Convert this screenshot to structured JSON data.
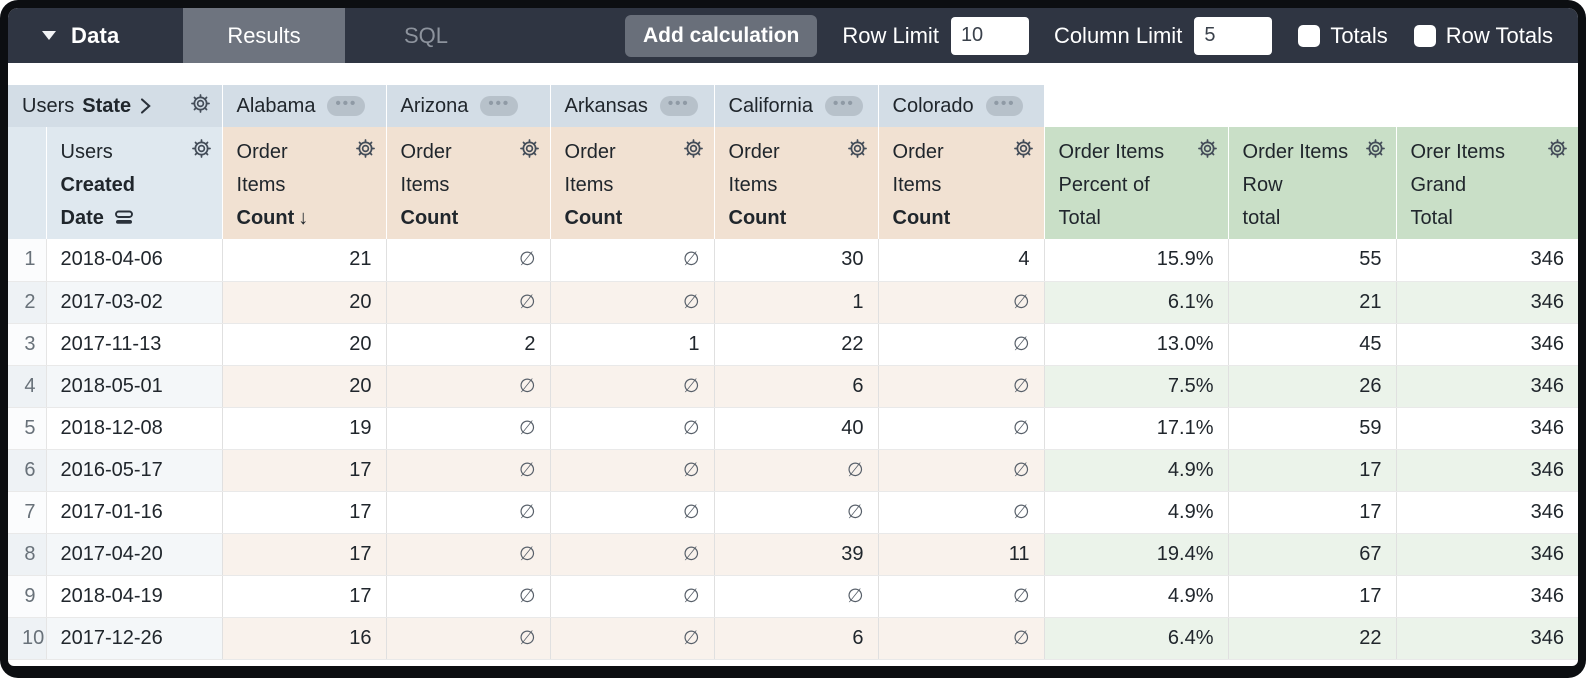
{
  "toolbar": {
    "data_label": "Data",
    "tabs": [
      {
        "label": "Results",
        "active": true
      },
      {
        "label": "SQL",
        "active": false
      }
    ],
    "add_calculation_label": "Add calculation",
    "row_limit_label": "Row Limit",
    "row_limit_value": "10",
    "column_limit_label": "Column Limit",
    "column_limit_value": "5",
    "totals_label": "Totals",
    "totals_checked": false,
    "row_totals_label": "Row Totals",
    "row_totals_checked": false
  },
  "pivot": {
    "field_prefix": "Users",
    "field_name": "State",
    "values": [
      "Alabama",
      "Arizona",
      "Arkansas",
      "California",
      "Colorado"
    ]
  },
  "headers": {
    "dimension": {
      "line1": "Users",
      "line2": "Created",
      "line3": "Date"
    },
    "measure": {
      "line1": "Order",
      "line2": "Items",
      "line3": "Count"
    },
    "sorted_measure_index": 0,
    "sort_direction": "desc",
    "calc_columns": [
      {
        "line1": "Order Items",
        "line2": "Percent of",
        "line3": "Total"
      },
      {
        "line1": "Order Items",
        "line2": "Row",
        "line3": "total"
      },
      {
        "line1": "Orer Items",
        "line2": "Grand",
        "line3": "Total"
      }
    ]
  },
  "table": {
    "null_symbol": "∅",
    "rows": [
      {
        "n": "1",
        "date": "2018-04-06",
        "counts": [
          "21",
          null,
          null,
          "30",
          "4"
        ],
        "percent_of_total": "15.9%",
        "row_total": "55",
        "grand_total": "346"
      },
      {
        "n": "2",
        "date": "2017-03-02",
        "counts": [
          "20",
          null,
          null,
          "1",
          null
        ],
        "percent_of_total": "6.1%",
        "row_total": "21",
        "grand_total": "346"
      },
      {
        "n": "3",
        "date": "2017-11-13",
        "counts": [
          "20",
          "2",
          "1",
          "22",
          null
        ],
        "percent_of_total": "13.0%",
        "row_total": "45",
        "grand_total": "346"
      },
      {
        "n": "4",
        "date": "2018-05-01",
        "counts": [
          "20",
          null,
          null,
          "6",
          null
        ],
        "percent_of_total": "7.5%",
        "row_total": "26",
        "grand_total": "346"
      },
      {
        "n": "5",
        "date": "2018-12-08",
        "counts": [
          "19",
          null,
          null,
          "40",
          null
        ],
        "percent_of_total": "17.1%",
        "row_total": "59",
        "grand_total": "346"
      },
      {
        "n": "6",
        "date": "2016-05-17",
        "counts": [
          "17",
          null,
          null,
          null,
          null
        ],
        "percent_of_total": "4.9%",
        "row_total": "17",
        "grand_total": "346"
      },
      {
        "n": "7",
        "date": "2017-01-16",
        "counts": [
          "17",
          null,
          null,
          null,
          null
        ],
        "percent_of_total": "4.9%",
        "row_total": "17",
        "grand_total": "346"
      },
      {
        "n": "8",
        "date": "2017-04-20",
        "counts": [
          "17",
          null,
          null,
          "39",
          "11"
        ],
        "percent_of_total": "19.4%",
        "row_total": "67",
        "grand_total": "346"
      },
      {
        "n": "9",
        "date": "2018-04-19",
        "counts": [
          "17",
          null,
          null,
          null,
          null
        ],
        "percent_of_total": "4.9%",
        "row_total": "17",
        "grand_total": "346"
      },
      {
        "n": "10",
        "date": "2017-12-26",
        "counts": [
          "16",
          null,
          null,
          "6",
          null
        ],
        "percent_of_total": "6.4%",
        "row_total": "22",
        "grand_total": "346"
      }
    ]
  },
  "colors": {
    "topbar_bg": "#2f3542",
    "active_tab_bg": "#6e747f",
    "pivot_header_bg": "#d3dde6",
    "dimension_header_bg": "#dfe8ef",
    "measure_header_bg": "#f1e1d2",
    "calc_header_bg": "#c9dfc7",
    "even_row_measure_tint": "#f9f2ec",
    "even_row_calc_tint": "#ebf3ea"
  }
}
